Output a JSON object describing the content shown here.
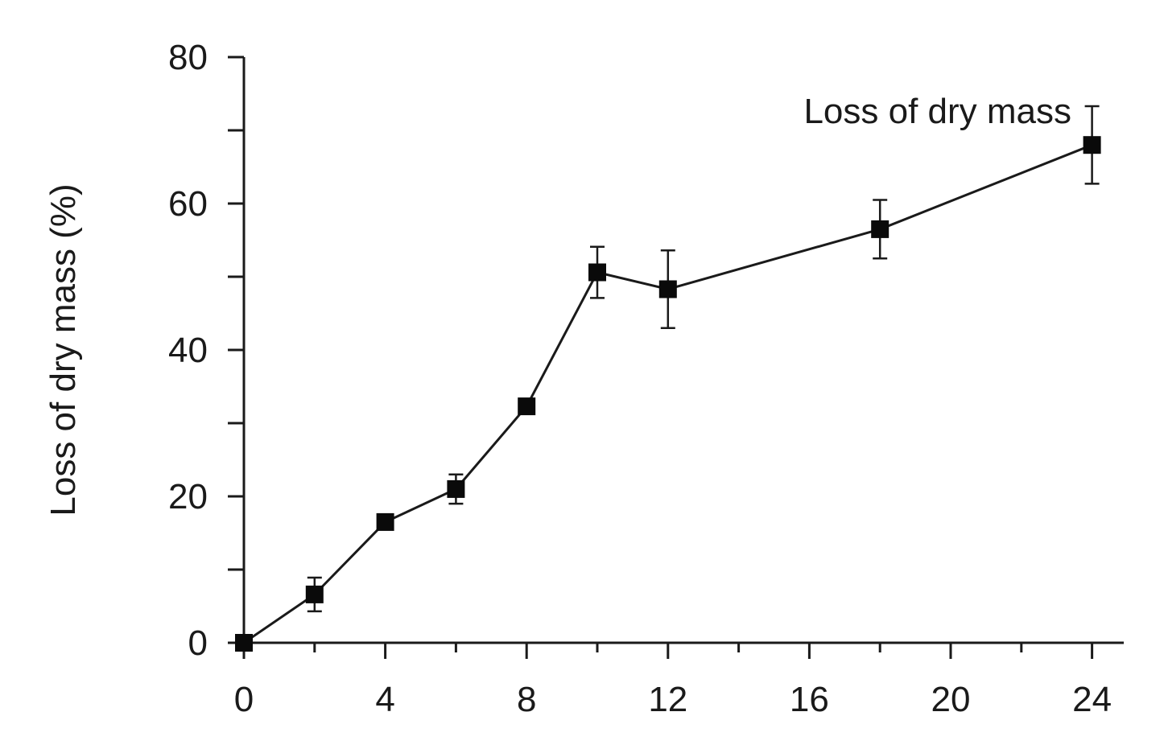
{
  "chart_data": {
    "type": "line",
    "ylabel": "Loss of dry mass (%)",
    "xlabel": "",
    "xlim": [
      0,
      25
    ],
    "ylim": [
      0,
      80
    ],
    "x_ticks": [
      0,
      4,
      8,
      12,
      16,
      20,
      24
    ],
    "x_minor_ticks": [
      2,
      6,
      10,
      14,
      18,
      22
    ],
    "y_ticks": [
      0,
      20,
      40,
      60,
      80
    ],
    "y_minor_ticks": [
      10,
      30,
      50,
      70
    ],
    "grid": false,
    "annotation": "Loss of dry mass",
    "series": [
      {
        "marker": "square",
        "color": "#0a0a0a",
        "x": [
          0,
          2,
          4,
          6,
          8,
          10,
          12,
          18,
          24
        ],
        "values": [
          0,
          6.6,
          16.5,
          21.0,
          32.3,
          50.6,
          48.3,
          56.5,
          68.0
        ],
        "error": [
          0,
          2.3,
          1.0,
          2.0,
          0.8,
          3.5,
          5.3,
          4.0,
          5.3
        ]
      }
    ]
  }
}
